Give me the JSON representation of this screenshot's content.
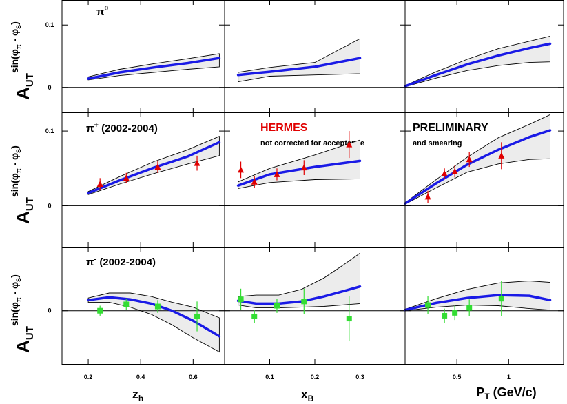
{
  "chart_data": {
    "type": "scatter",
    "title": "",
    "y_tick_labels": [
      "0",
      "0.1"
    ],
    "ylabel": {
      "main": "A",
      "sub": "UT",
      "sup": "sin(φ",
      "sup_sub": "π",
      "sup_tail": " - φ",
      "sup_sub2": "S",
      "sup_end": ")"
    },
    "columns": [
      {
        "key": "zh",
        "xlabel_main": "z",
        "xlabel_sub": "h",
        "xlabel_tail": "",
        "xlim": [
          0.1,
          0.72
        ],
        "tick_values": [
          0.2,
          0.4,
          0.6
        ],
        "tick_labels": [
          "0.2",
          "0.4",
          "0.6"
        ]
      },
      {
        "key": "xB",
        "xlabel_main": "x",
        "xlabel_sub": "B",
        "xlabel_tail": "",
        "xlim": [
          0.0,
          0.4
        ],
        "tick_values": [
          0.1,
          0.2,
          0.3
        ],
        "tick_labels": [
          "0.1",
          "0.2",
          "0.3"
        ]
      },
      {
        "key": "PT",
        "xlabel_main": "P",
        "xlabel_sub": "T",
        "xlabel_tail": " (GeV/c)",
        "xlim": [
          0.0,
          1.53
        ],
        "tick_values": [
          0.5,
          1.0
        ],
        "tick_labels": [
          "0.5",
          "1"
        ]
      }
    ],
    "rows": [
      {
        "label_main": "π",
        "label_sup": "0",
        "label_tail": "",
        "ylim": [
          -0.04,
          0.14
        ],
        "marker": "none",
        "color": "#000000",
        "panels": [
          {
            "curve_x": [
              0.2,
              0.32,
              0.45,
              0.58,
              0.7
            ],
            "curve": [
              0.014,
              0.024,
              0.032,
              0.039,
              0.047
            ],
            "band_low": [
              0.012,
              0.019,
              0.024,
              0.029,
              0.033
            ],
            "band_high": [
              0.017,
              0.029,
              0.038,
              0.046,
              0.054
            ],
            "points": []
          },
          {
            "curve_x": [
              0.03,
              0.1,
              0.2,
              0.3
            ],
            "curve": [
              0.02,
              0.025,
              0.033,
              0.047
            ],
            "band_low": [
              0.009,
              0.018,
              0.02,
              0.022
            ],
            "band_high": [
              0.024,
              0.032,
              0.04,
              0.078
            ],
            "points": []
          },
          {
            "curve_x": [
              0.0,
              0.3,
              0.6,
              0.9,
              1.2,
              1.4
            ],
            "curve": [
              0.002,
              0.02,
              0.037,
              0.051,
              0.063,
              0.07
            ],
            "band_low": [
              0.001,
              0.015,
              0.027,
              0.035,
              0.04,
              0.041
            ],
            "band_high": [
              0.003,
              0.025,
              0.045,
              0.062,
              0.074,
              0.082
            ],
            "points": []
          }
        ]
      },
      {
        "label_main": "π",
        "label_sup": "+",
        "label_tail": " (2002-2004)",
        "ylim": [
          -0.055,
          0.125
        ],
        "marker": "triangle",
        "color": "#e00000",
        "panels": [
          {
            "curve_x": [
              0.2,
              0.32,
              0.45,
              0.58,
              0.7
            ],
            "curve": [
              0.017,
              0.034,
              0.051,
              0.066,
              0.085
            ],
            "band_low": [
              0.015,
              0.029,
              0.043,
              0.056,
              0.067
            ],
            "band_high": [
              0.019,
              0.039,
              0.059,
              0.075,
              0.093
            ],
            "points": [
              {
                "x": 0.245,
                "y": 0.029,
                "err": 0.008
              },
              {
                "x": 0.345,
                "y": 0.037,
                "err": 0.007
              },
              {
                "x": 0.465,
                "y": 0.052,
                "err": 0.008
              },
              {
                "x": 0.615,
                "y": 0.057,
                "err": 0.01
              }
            ]
          },
          {
            "curve_x": [
              0.03,
              0.1,
              0.2,
              0.3
            ],
            "curve": [
              0.027,
              0.042,
              0.052,
              0.06
            ],
            "band_low": [
              0.023,
              0.031,
              0.035,
              0.036
            ],
            "band_high": [
              0.032,
              0.05,
              0.068,
              0.088
            ],
            "points": [
              {
                "x": 0.036,
                "y": 0.048,
                "err": 0.011
              },
              {
                "x": 0.066,
                "y": 0.032,
                "err": 0.008
              },
              {
                "x": 0.116,
                "y": 0.042,
                "err": 0.008
              },
              {
                "x": 0.176,
                "y": 0.051,
                "err": 0.01
              },
              {
                "x": 0.276,
                "y": 0.082,
                "err": 0.018
              }
            ]
          },
          {
            "curve_x": [
              0.0,
              0.3,
              0.6,
              0.9,
              1.2,
              1.4
            ],
            "curve": [
              0.003,
              0.03,
              0.055,
              0.075,
              0.092,
              0.101
            ],
            "band_low": [
              0.002,
              0.024,
              0.045,
              0.056,
              0.062,
              0.063
            ],
            "band_high": [
              0.004,
              0.035,
              0.065,
              0.091,
              0.109,
              0.122
            ],
            "points": [
              {
                "x": 0.22,
                "y": 0.012,
                "err": 0.008
              },
              {
                "x": 0.38,
                "y": 0.043,
                "err": 0.007
              },
              {
                "x": 0.48,
                "y": 0.046,
                "err": 0.008
              },
              {
                "x": 0.62,
                "y": 0.062,
                "err": 0.01
              },
              {
                "x": 0.93,
                "y": 0.067,
                "err": 0.018
              }
            ]
          }
        ]
      },
      {
        "label_main": "π",
        "label_sup": "-",
        "label_tail": " (2002-2004)",
        "ylim": [
          -0.075,
          0.09
        ],
        "marker": "square",
        "color": "#33dd33",
        "panels": [
          {
            "curve_x": [
              0.2,
              0.28,
              0.36,
              0.44,
              0.52,
              0.6,
              0.7
            ],
            "curve": [
              0.015,
              0.019,
              0.016,
              0.01,
              0.0,
              -0.014,
              -0.036
            ],
            "band_low": [
              0.012,
              0.012,
              0.005,
              -0.005,
              -0.02,
              -0.038,
              -0.058
            ],
            "band_high": [
              0.018,
              0.025,
              0.025,
              0.02,
              0.012,
              0.005,
              -0.01
            ],
            "points": [
              {
                "x": 0.245,
                "y": 0.0,
                "err": 0.007
              },
              {
                "x": 0.345,
                "y": 0.009,
                "err": 0.008
              },
              {
                "x": 0.465,
                "y": 0.006,
                "err": 0.009
              },
              {
                "x": 0.615,
                "y": -0.008,
                "err": 0.021
              }
            ]
          },
          {
            "curve_x": [
              0.03,
              0.07,
              0.12,
              0.17,
              0.22,
              0.26,
              0.3
            ],
            "curve": [
              0.014,
              0.01,
              0.01,
              0.013,
              0.02,
              0.027,
              0.034
            ],
            "band_low": [
              0.008,
              0.004,
              0.004,
              0.005,
              0.006,
              0.008,
              0.01
            ],
            "band_high": [
              0.02,
              0.022,
              0.022,
              0.03,
              0.046,
              0.063,
              0.081
            ],
            "points": [
              {
                "x": 0.036,
                "y": 0.016,
                "err": 0.015
              },
              {
                "x": 0.066,
                "y": -0.008,
                "err": 0.009
              },
              {
                "x": 0.116,
                "y": 0.007,
                "err": 0.01
              },
              {
                "x": 0.176,
                "y": 0.013,
                "err": 0.018
              },
              {
                "x": 0.276,
                "y": -0.011,
                "err": 0.032
              }
            ]
          },
          {
            "curve_x": [
              0.0,
              0.3,
              0.6,
              0.9,
              1.2,
              1.4
            ],
            "curve": [
              0.001,
              0.011,
              0.018,
              0.022,
              0.021,
              0.015
            ],
            "band_low": [
              0.0,
              0.005,
              0.008,
              0.007,
              0.003,
              0.001
            ],
            "band_high": [
              0.002,
              0.017,
              0.03,
              0.039,
              0.042,
              0.04
            ],
            "points": [
              {
                "x": 0.22,
                "y": 0.008,
                "err": 0.013
              },
              {
                "x": 0.38,
                "y": -0.007,
                "err": 0.01
              },
              {
                "x": 0.48,
                "y": -0.003,
                "err": 0.01
              },
              {
                "x": 0.62,
                "y": 0.004,
                "err": 0.012
              },
              {
                "x": 0.93,
                "y": 0.017,
                "err": 0.025
              }
            ]
          }
        ]
      }
    ],
    "annotations": {
      "experiment": "HERMES",
      "note_line1": "not corrected for acceptance",
      "status": "PRELIMINARY",
      "note_line2": "and smearing"
    }
  }
}
